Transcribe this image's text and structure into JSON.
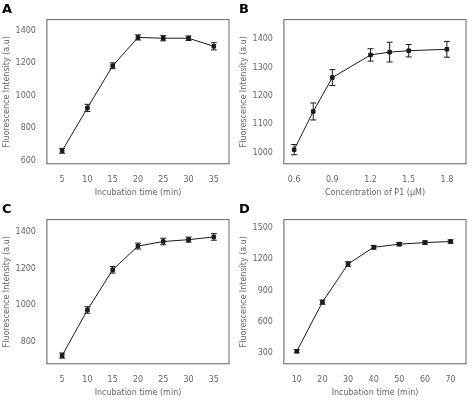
{
  "chart_data": [
    {
      "type": "line",
      "title": "A",
      "x": [
        5,
        10,
        15,
        20,
        25,
        30,
        35
      ],
      "values": [
        660,
        925,
        1185,
        1360,
        1355,
        1355,
        1305
      ],
      "yerr": [
        15,
        22,
        18,
        16,
        16,
        14,
        22
      ],
      "xlabel": "Incubation time (min)",
      "ylabel": "Fluorescence Intensity (a.u)",
      "xlim": [
        2,
        38
      ],
      "ylim": [
        580,
        1470
      ],
      "xticks": [
        5,
        10,
        15,
        20,
        25,
        30,
        35
      ],
      "yticks": [
        600,
        800,
        1000,
        1200,
        1400
      ],
      "color": "#1a1a1a",
      "marker": "square",
      "line_style": "solid",
      "grid": false
    },
    {
      "type": "line",
      "title": "B",
      "x": [
        0.6,
        0.75,
        0.9,
        1.2,
        1.35,
        1.5,
        1.8
      ],
      "values": [
        1010,
        1145,
        1265,
        1345,
        1355,
        1360,
        1365
      ],
      "yerr": [
        18,
        30,
        28,
        22,
        35,
        22,
        28
      ],
      "xlabel": "Concentration of P1 (μM)",
      "ylabel": "Fluorescence Intensity (a.u)",
      "xlim": [
        0.52,
        1.95
      ],
      "ylim": [
        960,
        1470
      ],
      "xticks": [
        0.6,
        0.9,
        1.2,
        1.5,
        1.8
      ],
      "yticks": [
        1000,
        1100,
        1200,
        1300,
        1400
      ],
      "color": "#1a1a1a",
      "marker": "square",
      "line_style": "solid",
      "grid": false
    },
    {
      "type": "line",
      "title": "C",
      "x": [
        5,
        10,
        15,
        20,
        25,
        30,
        35
      ],
      "values": [
        725,
        975,
        1195,
        1325,
        1350,
        1360,
        1375
      ],
      "yerr": [
        14,
        18,
        18,
        16,
        18,
        14,
        18
      ],
      "xlabel": "Incubation time (min)",
      "ylabel": "Fluorescence Intensity (a.u)",
      "xlim": [
        2,
        38
      ],
      "ylim": [
        680,
        1470
      ],
      "xticks": [
        5,
        10,
        15,
        20,
        25,
        30,
        35
      ],
      "yticks": [
        800,
        1000,
        1200,
        1400
      ],
      "color": "#1a1a1a",
      "marker": "square",
      "line_style": "solid",
      "grid": false
    },
    {
      "type": "line",
      "title": "D",
      "x": [
        10,
        20,
        30,
        40,
        50,
        60,
        70
      ],
      "values": [
        320,
        790,
        1155,
        1315,
        1345,
        1360,
        1370
      ],
      "yerr": [
        15,
        20,
        22,
        18,
        16,
        16,
        16
      ],
      "xlabel": "Incubation time (min)",
      "ylabel": "Fluorescence Intensity (a.u)",
      "xlim": [
        5,
        76
      ],
      "ylim": [
        200,
        1580
      ],
      "xticks": [
        10,
        20,
        30,
        40,
        50,
        60,
        70
      ],
      "yticks": [
        300,
        600,
        900,
        1200,
        1500
      ],
      "color": "#1a1a1a",
      "marker": "square",
      "line_style": "solid",
      "grid": false
    }
  ]
}
